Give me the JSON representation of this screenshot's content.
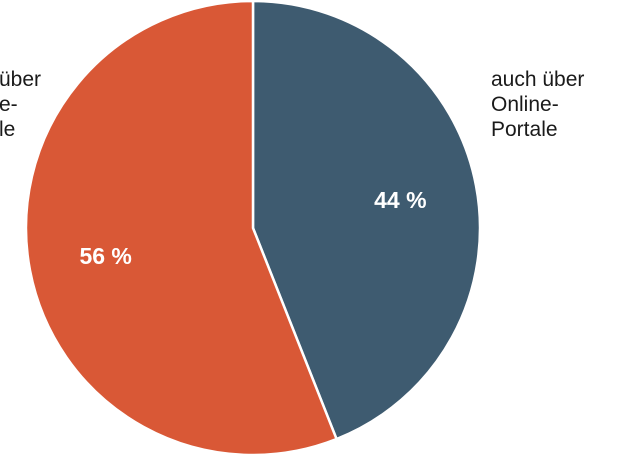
{
  "chart_data": {
    "type": "pie",
    "start_angle_deg": 0,
    "direction": "clockwise",
    "slices": [
      {
        "label_lines": [
          "auch über",
          "Online-",
          "Portale"
        ],
        "value": 44,
        "value_label": "44 %",
        "color": "#3e5b70"
      },
      {
        "label_lines": [
          "über",
          "e-",
          "le"
        ],
        "value": 56,
        "value_label": "56 %",
        "color": "#d95836"
      }
    ],
    "legend": false
  }
}
